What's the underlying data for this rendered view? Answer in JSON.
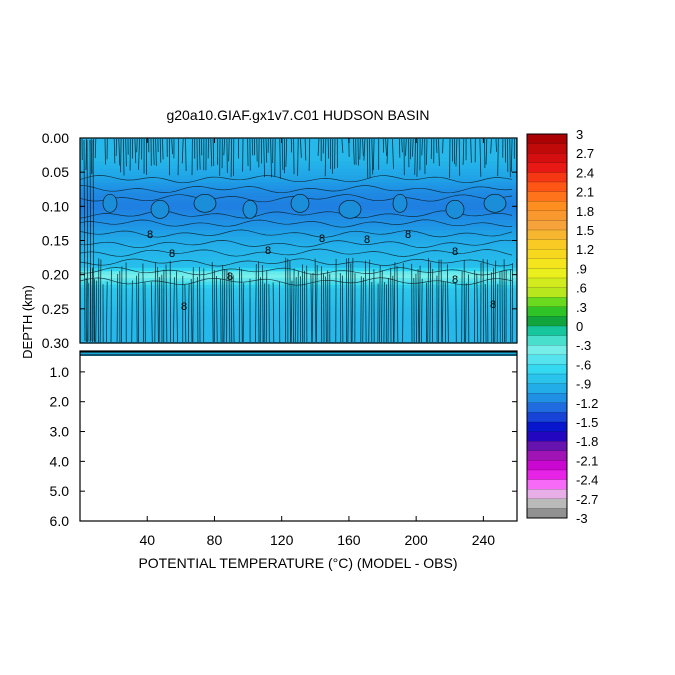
{
  "chart_data": {
    "type": "heatmap",
    "title": "g20a10.GIAF.gx1v7.C01 HUDSON BASIN",
    "xlabel": "POTENTIAL TEMPERATURE (°C) (MODEL - OBS)",
    "ylabel": "DEPTH (km)",
    "x_ticks": [
      "40",
      "80",
      "120",
      "160",
      "200",
      "240"
    ],
    "x_tick_values": [
      40,
      80,
      120,
      160,
      200,
      240
    ],
    "xlim": [
      0,
      260
    ],
    "upper_panel": {
      "ylim": [
        0.0,
        0.3
      ],
      "y_ticks": [
        "0.00",
        "0.05",
        "0.10",
        "0.15",
        "0.20",
        "0.25",
        "0.30"
      ],
      "y_tick_values": [
        0.0,
        0.05,
        0.1,
        0.15,
        0.2,
        0.25,
        0.3
      ],
      "depth_profile": [
        {
          "depth": 0.0,
          "value": -0.9
        },
        {
          "depth": 0.03,
          "value": -0.9
        },
        {
          "depth": 0.05,
          "value": -1.0
        },
        {
          "depth": 0.08,
          "value": -1.15
        },
        {
          "depth": 0.1,
          "value": -1.2
        },
        {
          "depth": 0.13,
          "value": -1.1
        },
        {
          "depth": 0.16,
          "value": -0.95
        },
        {
          "depth": 0.19,
          "value": -0.85
        },
        {
          "depth": 0.2,
          "value": -0.3
        },
        {
          "depth": 0.22,
          "value": -0.8
        },
        {
          "depth": 0.26,
          "value": -0.9
        },
        {
          "depth": 0.3,
          "value": -0.9
        }
      ],
      "contour_labels": [
        "8",
        "8",
        "8",
        "8",
        "8",
        "8",
        "8",
        "8",
        "8",
        "8",
        "8"
      ]
    },
    "lower_panel": {
      "ylim": [
        0.3,
        6.0
      ],
      "y_ticks": [
        "1.0",
        "2.0",
        "3.0",
        "4.0",
        "5.0",
        "6.0"
      ],
      "y_tick_values": [
        1.0,
        2.0,
        3.0,
        4.0,
        5.0,
        6.0
      ]
    },
    "colorbar": {
      "labels": [
        "3",
        "2.7",
        "2.4",
        "2.1",
        "1.8",
        "1.5",
        "1.2",
        ".9",
        ".6",
        ".3",
        "0",
        "-.3",
        "-.6",
        "-.9",
        "-1.2",
        "-1.5",
        "-1.8",
        "-2.1",
        "-2.4",
        "-2.7",
        "-3"
      ],
      "min": -3,
      "max": 3,
      "step": 0.15,
      "stops": [
        {
          "value": -3.0,
          "color": "#7c7c7c"
        },
        {
          "value": -2.7,
          "color": "#cfcfcf"
        },
        {
          "value": -2.55,
          "color": "#ff8cff"
        },
        {
          "value": -2.25,
          "color": "#e000e0"
        },
        {
          "value": -1.95,
          "color": "#8a1aa6"
        },
        {
          "value": -1.65,
          "color": "#0000c8"
        },
        {
          "value": -1.35,
          "color": "#1e5adc"
        },
        {
          "value": -1.05,
          "color": "#1fa2e6"
        },
        {
          "value": -0.7,
          "color": "#2fd6f0"
        },
        {
          "value": -0.35,
          "color": "#7af0ea"
        },
        {
          "value": -0.1,
          "color": "#19cdb0"
        },
        {
          "value": 0.05,
          "color": "#0fa040"
        },
        {
          "value": 0.3,
          "color": "#3cd21e"
        },
        {
          "value": 0.5,
          "color": "#b4e61e"
        },
        {
          "value": 0.85,
          "color": "#f0f01e"
        },
        {
          "value": 1.2,
          "color": "#fad21e"
        },
        {
          "value": 1.6,
          "color": "#f5a03c"
        },
        {
          "value": 1.9,
          "color": "#ff8c1e"
        },
        {
          "value": 2.2,
          "color": "#ff5014"
        },
        {
          "value": 2.5,
          "color": "#e61414"
        },
        {
          "value": 3.0,
          "color": "#a00000"
        }
      ]
    }
  }
}
